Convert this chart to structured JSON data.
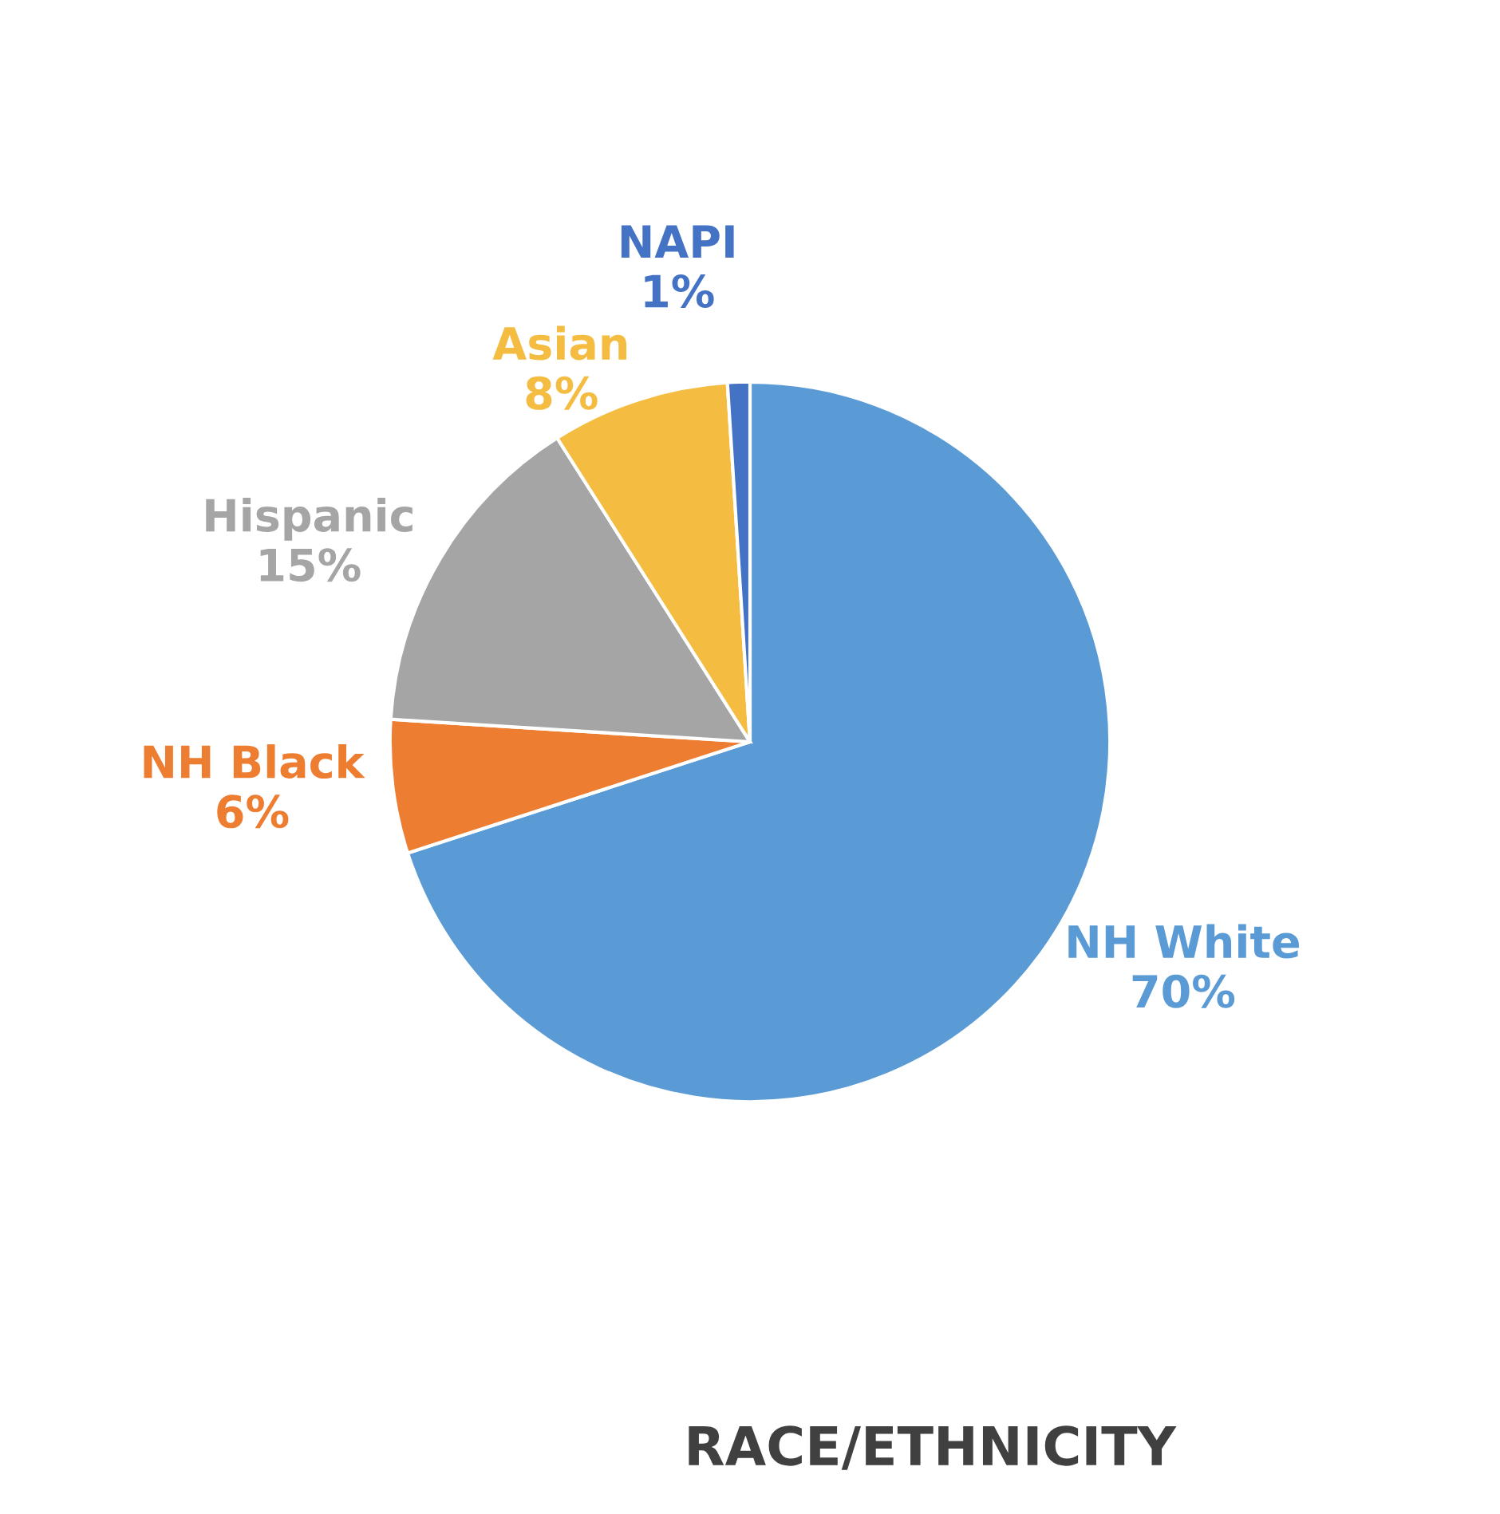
{
  "chart_data": {
    "type": "pie",
    "title": "RACE/ETHNICITY",
    "categories": [
      "NH White",
      "NH Black",
      "Hispanic",
      "Asian",
      "NAPI"
    ],
    "values": [
      70,
      6,
      15,
      8,
      1
    ],
    "value_labels": [
      "70%",
      "6%",
      "15%",
      "8%",
      "1%"
    ],
    "colors": [
      "#5b9bd5",
      "#ed7d31",
      "#a5a5a5",
      "#f4bc40",
      "#4472c4"
    ],
    "legend": false
  }
}
